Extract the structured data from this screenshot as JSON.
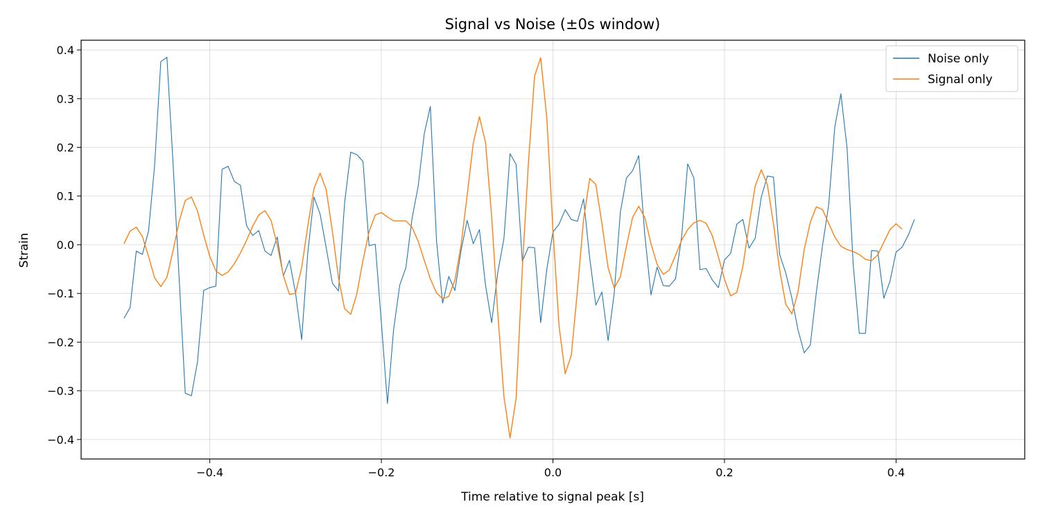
{
  "chart_data": {
    "type": "line",
    "title": "Signal vs Noise (±0s window)",
    "xlabel": "Time relative to signal peak [s]",
    "ylabel": "Strain",
    "xlim": [
      -0.55,
      0.55
    ],
    "ylim": [
      -0.44,
      0.42
    ],
    "xticks": [
      -0.4,
      -0.2,
      0.0,
      0.2,
      0.4
    ],
    "xtick_labels": [
      "−0.4",
      "−0.2",
      "0.0",
      "0.2",
      "0.4"
    ],
    "yticks": [
      -0.4,
      -0.3,
      -0.2,
      -0.1,
      0.0,
      0.1,
      0.2,
      0.3,
      0.4
    ],
    "ytick_labels": [
      "−0.4",
      "−0.3",
      "−0.2",
      "−0.1",
      "0.0",
      "0.1",
      "0.2",
      "0.3",
      "0.4"
    ],
    "grid": true,
    "legend_position": "top-right",
    "series": [
      {
        "name": "Noise only",
        "color": "#1f77b4",
        "points": [
          [
            -0.5,
            -0.151
          ],
          [
            -0.4929,
            -0.129
          ],
          [
            -0.4857,
            -0.013
          ],
          [
            -0.4786,
            -0.02
          ],
          [
            -0.4714,
            0.028
          ],
          [
            -0.4643,
            0.163
          ],
          [
            -0.4571,
            0.376
          ],
          [
            -0.45,
            0.385
          ],
          [
            -0.4429,
            0.17
          ],
          [
            -0.4357,
            -0.07
          ],
          [
            -0.4286,
            -0.305
          ],
          [
            -0.4214,
            -0.31
          ],
          [
            -0.4143,
            -0.24
          ],
          [
            -0.4071,
            -0.094
          ],
          [
            -0.4,
            -0.088
          ],
          [
            -0.3929,
            -0.085
          ],
          [
            -0.3857,
            0.155
          ],
          [
            -0.3786,
            0.161
          ],
          [
            -0.3714,
            0.13
          ],
          [
            -0.3643,
            0.122
          ],
          [
            -0.3571,
            0.039
          ],
          [
            -0.35,
            0.019
          ],
          [
            -0.3429,
            0.029
          ],
          [
            -0.3357,
            -0.013
          ],
          [
            -0.3286,
            -0.022
          ],
          [
            -0.3214,
            0.016
          ],
          [
            -0.3143,
            -0.064
          ],
          [
            -0.3071,
            -0.032
          ],
          [
            -0.3,
            -0.1
          ],
          [
            -0.2929,
            -0.195
          ],
          [
            -0.2857,
            -0.015
          ],
          [
            -0.2786,
            0.098
          ],
          [
            -0.2714,
            0.063
          ],
          [
            -0.2643,
            -0.006
          ],
          [
            -0.2571,
            -0.079
          ],
          [
            -0.25,
            -0.095
          ],
          [
            -0.2429,
            0.085
          ],
          [
            -0.2357,
            0.19
          ],
          [
            -0.2286,
            0.185
          ],
          [
            -0.2214,
            0.171
          ],
          [
            -0.2143,
            -0.002
          ],
          [
            -0.2071,
            0.001
          ],
          [
            -0.2,
            -0.16
          ],
          [
            -0.1929,
            -0.326
          ],
          [
            -0.1857,
            -0.174
          ],
          [
            -0.1786,
            -0.083
          ],
          [
            -0.1714,
            -0.047
          ],
          [
            -0.1643,
            0.053
          ],
          [
            -0.1571,
            0.12
          ],
          [
            -0.15,
            0.228
          ],
          [
            -0.1429,
            0.284
          ],
          [
            -0.1357,
            0.008
          ],
          [
            -0.1286,
            -0.12
          ],
          [
            -0.1214,
            -0.065
          ],
          [
            -0.1143,
            -0.094
          ],
          [
            -0.1071,
            -0.012
          ],
          [
            -0.1,
            0.05
          ],
          [
            -0.0929,
            0.002
          ],
          [
            -0.0857,
            0.031
          ],
          [
            -0.0786,
            -0.083
          ],
          [
            -0.0714,
            -0.16
          ],
          [
            -0.0643,
            -0.057
          ],
          [
            -0.0571,
            0.013
          ],
          [
            -0.05,
            0.187
          ],
          [
            -0.0429,
            0.165
          ],
          [
            -0.0357,
            -0.034
          ],
          [
            -0.0286,
            -0.005
          ],
          [
            -0.0214,
            -0.006
          ],
          [
            -0.0143,
            -0.16
          ],
          [
            -0.0071,
            -0.05
          ],
          [
            0.0,
            0.026
          ],
          [
            0.0071,
            0.042
          ],
          [
            0.0143,
            0.072
          ],
          [
            0.0214,
            0.052
          ],
          [
            0.0286,
            0.048
          ],
          [
            0.0357,
            0.094
          ],
          [
            0.0429,
            -0.028
          ],
          [
            0.05,
            -0.124
          ],
          [
            0.0571,
            -0.097
          ],
          [
            0.0643,
            -0.197
          ],
          [
            0.0714,
            -0.1
          ],
          [
            0.0786,
            0.067
          ],
          [
            0.0857,
            0.137
          ],
          [
            0.0929,
            0.152
          ],
          [
            0.1,
            0.183
          ],
          [
            0.1071,
            0.02
          ],
          [
            0.1143,
            -0.103
          ],
          [
            0.1214,
            -0.046
          ],
          [
            0.1286,
            -0.084
          ],
          [
            0.1357,
            -0.085
          ],
          [
            0.1429,
            -0.07
          ],
          [
            0.15,
            0.016
          ],
          [
            0.1571,
            0.166
          ],
          [
            0.1643,
            0.137
          ],
          [
            0.1714,
            -0.051
          ],
          [
            0.1786,
            -0.049
          ],
          [
            0.1857,
            -0.072
          ],
          [
            0.1929,
            -0.088
          ],
          [
            0.2,
            -0.031
          ],
          [
            0.2071,
            -0.018
          ],
          [
            0.2143,
            0.042
          ],
          [
            0.2214,
            0.052
          ],
          [
            0.2286,
            -0.007
          ],
          [
            0.2357,
            0.013
          ],
          [
            0.2429,
            0.098
          ],
          [
            0.25,
            0.141
          ],
          [
            0.2571,
            0.139
          ],
          [
            0.2643,
            -0.02
          ],
          [
            0.2714,
            -0.058
          ],
          [
            0.2786,
            -0.11
          ],
          [
            0.2857,
            -0.175
          ],
          [
            0.2929,
            -0.222
          ],
          [
            0.3,
            -0.206
          ],
          [
            0.3071,
            -0.097
          ],
          [
            0.3143,
            -0.001
          ],
          [
            0.3214,
            0.081
          ],
          [
            0.3286,
            0.242
          ],
          [
            0.3357,
            0.31
          ],
          [
            0.3429,
            0.198
          ],
          [
            0.35,
            -0.04
          ],
          [
            0.3571,
            -0.182
          ],
          [
            0.3643,
            -0.182
          ],
          [
            0.3714,
            -0.012
          ],
          [
            0.3786,
            -0.013
          ],
          [
            0.3857,
            -0.11
          ],
          [
            0.3929,
            -0.075
          ],
          [
            0.4,
            -0.015
          ],
          [
            0.4071,
            -0.005
          ],
          [
            0.4143,
            0.02
          ],
          [
            0.4214,
            0.052
          ]
        ]
      },
      {
        "name": "Signal only",
        "color": "#ff7f0e",
        "points": [
          [
            -0.5,
            0.002
          ],
          [
            -0.4929,
            0.028
          ],
          [
            -0.4857,
            0.036
          ],
          [
            -0.4786,
            0.017
          ],
          [
            -0.4714,
            -0.024
          ],
          [
            -0.4643,
            -0.068
          ],
          [
            -0.4571,
            -0.086
          ],
          [
            -0.45,
            -0.067
          ],
          [
            -0.4429,
            -0.013
          ],
          [
            -0.4357,
            0.048
          ],
          [
            -0.4286,
            0.091
          ],
          [
            -0.4214,
            0.098
          ],
          [
            -0.4143,
            0.069
          ],
          [
            -0.4071,
            0.02
          ],
          [
            -0.4,
            -0.024
          ],
          [
            -0.3929,
            -0.054
          ],
          [
            -0.3857,
            -0.063
          ],
          [
            -0.3786,
            -0.056
          ],
          [
            -0.3714,
            -0.039
          ],
          [
            -0.3643,
            -0.017
          ],
          [
            -0.3571,
            0.009
          ],
          [
            -0.35,
            0.038
          ],
          [
            -0.3429,
            0.061
          ],
          [
            -0.3357,
            0.07
          ],
          [
            -0.3286,
            0.05
          ],
          [
            -0.3214,
            0.0
          ],
          [
            -0.3143,
            -0.063
          ],
          [
            -0.3071,
            -0.102
          ],
          [
            -0.3,
            -0.1
          ],
          [
            -0.2929,
            -0.047
          ],
          [
            -0.2857,
            0.039
          ],
          [
            -0.2786,
            0.115
          ],
          [
            -0.2714,
            0.147
          ],
          [
            -0.2643,
            0.113
          ],
          [
            -0.2571,
            0.028
          ],
          [
            -0.25,
            -0.068
          ],
          [
            -0.2429,
            -0.131
          ],
          [
            -0.2357,
            -0.143
          ],
          [
            -0.2286,
            -0.101
          ],
          [
            -0.2214,
            -0.032
          ],
          [
            -0.2143,
            0.027
          ],
          [
            -0.2071,
            0.061
          ],
          [
            -0.2,
            0.066
          ],
          [
            -0.1929,
            0.057
          ],
          [
            -0.1857,
            0.049
          ],
          [
            -0.1786,
            0.049
          ],
          [
            -0.1714,
            0.049
          ],
          [
            -0.1643,
            0.036
          ],
          [
            -0.1571,
            0.007
          ],
          [
            -0.15,
            -0.032
          ],
          [
            -0.1429,
            -0.07
          ],
          [
            -0.1357,
            -0.099
          ],
          [
            -0.1286,
            -0.111
          ],
          [
            -0.1214,
            -0.106
          ],
          [
            -0.1143,
            -0.073
          ],
          [
            -0.1071,
            -0.001
          ],
          [
            -0.1,
            0.101
          ],
          [
            -0.0929,
            0.208
          ],
          [
            -0.0857,
            0.263
          ],
          [
            -0.0786,
            0.21
          ],
          [
            -0.0714,
            0.058
          ],
          [
            -0.0643,
            -0.14
          ],
          [
            -0.0571,
            -0.312
          ],
          [
            -0.05,
            -0.397
          ],
          [
            -0.0429,
            -0.315
          ],
          [
            -0.0357,
            -0.05
          ],
          [
            -0.0286,
            0.167
          ],
          [
            -0.0214,
            0.346
          ],
          [
            -0.0143,
            0.384
          ],
          [
            -0.0071,
            0.26
          ],
          [
            0.0,
            0.031
          ],
          [
            0.0071,
            -0.166
          ],
          [
            0.0143,
            -0.265
          ],
          [
            0.0214,
            -0.227
          ],
          [
            0.0286,
            -0.093
          ],
          [
            0.0357,
            0.052
          ],
          [
            0.0429,
            0.136
          ],
          [
            0.05,
            0.124
          ],
          [
            0.0571,
            0.044
          ],
          [
            0.0643,
            -0.047
          ],
          [
            0.0714,
            -0.089
          ],
          [
            0.0786,
            -0.066
          ],
          [
            0.0857,
            -0.003
          ],
          [
            0.0929,
            0.056
          ],
          [
            0.1,
            0.079
          ],
          [
            0.1071,
            0.056
          ],
          [
            0.1143,
            0.002
          ],
          [
            0.1214,
            -0.04
          ],
          [
            0.1286,
            -0.061
          ],
          [
            0.1357,
            -0.052
          ],
          [
            0.1429,
            -0.022
          ],
          [
            0.15,
            0.009
          ],
          [
            0.1571,
            0.031
          ],
          [
            0.1643,
            0.045
          ],
          [
            0.1714,
            0.05
          ],
          [
            0.1786,
            0.044
          ],
          [
            0.1857,
            0.019
          ],
          [
            0.1929,
            -0.025
          ],
          [
            0.2,
            -0.071
          ],
          [
            0.2071,
            -0.105
          ],
          [
            0.2143,
            -0.098
          ],
          [
            0.2214,
            -0.045
          ],
          [
            0.2286,
            0.04
          ],
          [
            0.2357,
            0.12
          ],
          [
            0.2429,
            0.154
          ],
          [
            0.25,
            0.123
          ],
          [
            0.2571,
            0.043
          ],
          [
            0.2643,
            -0.052
          ],
          [
            0.2714,
            -0.122
          ],
          [
            0.2786,
            -0.142
          ],
          [
            0.2857,
            -0.097
          ],
          [
            0.2929,
            -0.01
          ],
          [
            0.3,
            0.046
          ],
          [
            0.3071,
            0.078
          ],
          [
            0.3143,
            0.072
          ],
          [
            0.3214,
            0.044
          ],
          [
            0.3286,
            0.016
          ],
          [
            0.3357,
            -0.003
          ],
          [
            0.3429,
            -0.01
          ],
          [
            0.35,
            -0.014
          ],
          [
            0.3571,
            -0.02
          ],
          [
            0.3643,
            -0.03
          ],
          [
            0.3714,
            -0.033
          ],
          [
            0.3786,
            -0.021
          ],
          [
            0.3857,
            0.005
          ],
          [
            0.3929,
            0.031
          ],
          [
            0.4,
            0.043
          ],
          [
            0.4071,
            0.032
          ]
        ]
      }
    ]
  }
}
